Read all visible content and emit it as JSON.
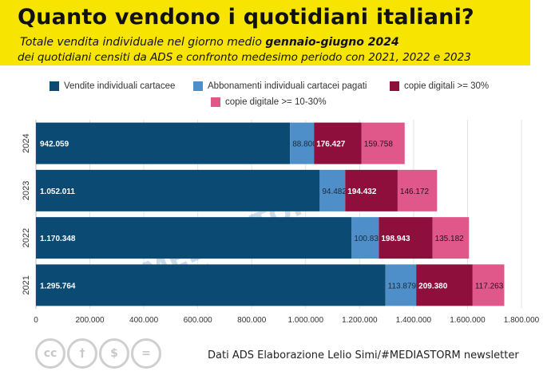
{
  "header": {
    "title": "Quanto vendono i quotidiani italiani?",
    "subtitle_part1": "Totale vendita individuale nel giorno medio ",
    "subtitle_bold": "gennaio-giugno 2024",
    "subtitle_line2": "dei quotidiani censiti da ADS e confronto medesimo periodo con 2021, 2022 e 2023"
  },
  "footer": {
    "source": "Dati ADS  Elaborazione Lelio Simi/#MEDIASTORM newsletter",
    "license_icons": [
      "cc-icon",
      "by-person-icon",
      "no-dollar-icon",
      "equals-icon"
    ],
    "license_glyphs": [
      "cc",
      "†",
      "$",
      "="
    ]
  },
  "watermark": {
    "text": "#MEDIASTORM",
    "tagline": "FATTI SUI GIORNALI",
    "color": "#9fb8cf"
  },
  "chart_data": {
    "type": "bar",
    "orientation": "horizontal",
    "stacked": true,
    "categories": [
      "2024",
      "2023",
      "2022",
      "2021"
    ],
    "series": [
      {
        "name": "Vendite individuali cartacee",
        "color": "#0b4a73",
        "values": [
          942059,
          1052011,
          1170348,
          1295764
        ],
        "labels": [
          "942.059",
          "1.052.011",
          "1.170.348",
          "1.295.764"
        ]
      },
      {
        "name": "Abbonamenti individuali cartacei pagati",
        "color": "#4f8fc9",
        "values": [
          88800,
          94482,
          100832,
          113879
        ],
        "labels": [
          "88.800",
          "94.482",
          "100.832",
          "113.879"
        ]
      },
      {
        "name": "copie digitali >= 30%",
        "color": "#8e0f3c",
        "values": [
          176427,
          194432,
          198943,
          209380
        ],
        "labels": [
          "176.427",
          "194.432",
          "198.943",
          "209.380"
        ]
      },
      {
        "name": "copie digitale >= 10-30%",
        "color": "#e0578a",
        "values": [
          159758,
          146172,
          135182,
          117263
        ],
        "labels": [
          "159.758",
          "146.172",
          "135.182",
          "117.263"
        ]
      }
    ],
    "xlim": [
      0,
      1800000
    ],
    "xticks": [
      0,
      200000,
      400000,
      600000,
      800000,
      1000000,
      1200000,
      1400000,
      1600000,
      1800000
    ],
    "xtick_labels": [
      "0",
      "200.000",
      "400.000",
      "600.000",
      "800.000",
      "1.000.000",
      "1.200.000",
      "1.400.000",
      "1.600.000",
      "1.800.000"
    ],
    "grid": true,
    "legend_position": "top"
  }
}
